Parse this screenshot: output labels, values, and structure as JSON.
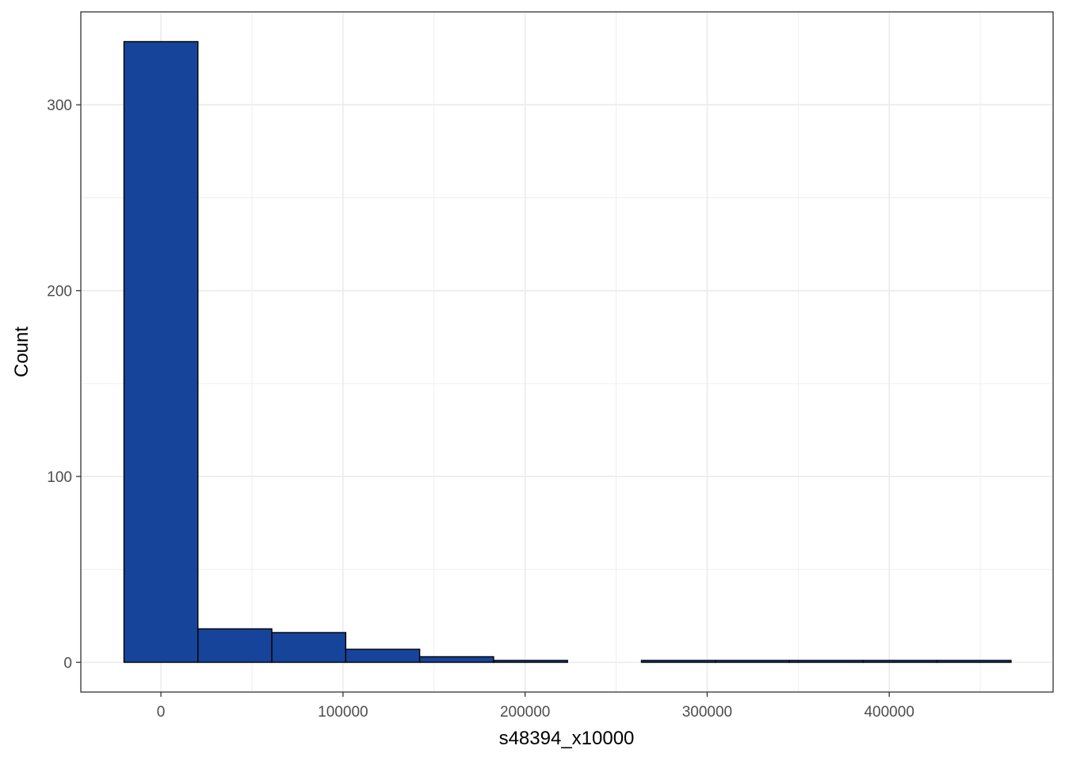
{
  "chart_data": {
    "type": "bar",
    "subtype": "histogram",
    "xlabel": "s48394_x10000",
    "ylabel": "Count",
    "xlim": [
      -44000,
      490000
    ],
    "ylim": [
      -16,
      350
    ],
    "x_ticks": [
      0,
      100000,
      200000,
      300000,
      400000
    ],
    "y_ticks": [
      0,
      100,
      200,
      300
    ],
    "x_minor_grid": [
      50000,
      150000,
      250000,
      350000,
      450000
    ],
    "y_minor_grid": [
      50,
      150,
      250
    ],
    "grid": true,
    "bin_edges": [
      -20300,
      20300,
      60900,
      101500,
      142100,
      182700,
      223300,
      263900,
      304500,
      345100,
      385700,
      426300,
      466900
    ],
    "counts": [
      334,
      18,
      16,
      7,
      3,
      1,
      0,
      1,
      1,
      1,
      1,
      1
    ],
    "colors": {
      "bar_fill": "#17449b",
      "bar_border": "#000000",
      "grid": "#ebebeb",
      "panel_border": "#333333"
    }
  }
}
